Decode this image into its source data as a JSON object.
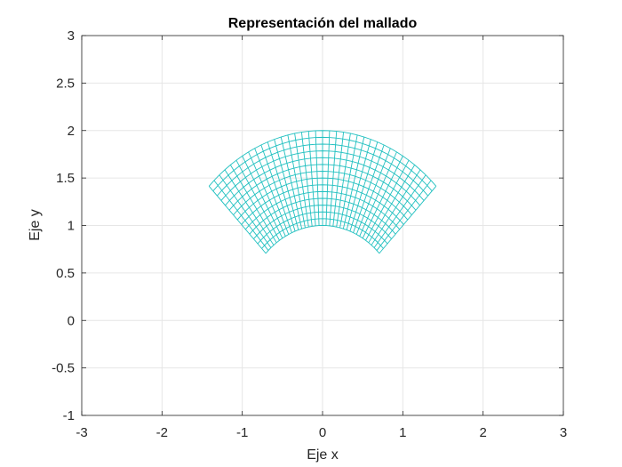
{
  "chart_data": {
    "type": "line",
    "title": "Representación del mallado",
    "xlabel": "Eje x",
    "ylabel": "Eje y",
    "xlim": [
      -3,
      3
    ],
    "ylim": [
      -1,
      3
    ],
    "x_ticks": [
      -3,
      -2,
      -1,
      0,
      1,
      2,
      3
    ],
    "y_ticks": [
      -1,
      -0.5,
      0,
      0.5,
      1,
      1.5,
      2,
      2.5,
      3
    ],
    "x_tick_labels": [
      "-3",
      "-2",
      "-1",
      "0",
      "1",
      "2",
      "3"
    ],
    "y_tick_labels": [
      "-1",
      "-0.5",
      "0",
      "0.5",
      "1",
      "1.5",
      "2",
      "2.5",
      "3"
    ],
    "grid": true,
    "mesh": {
      "shape": "annular sector",
      "center": [
        0,
        0
      ],
      "inner_radius": 1,
      "outer_radius": 2,
      "theta_start_deg": 45,
      "theta_end_deg": 135,
      "radial_divisions": 14,
      "angular_divisions": 36,
      "color": "#20c0c0"
    }
  },
  "colors": {
    "grid": "#e6e6e6",
    "axes": "#262626",
    "mesh": "#20c0c0"
  }
}
